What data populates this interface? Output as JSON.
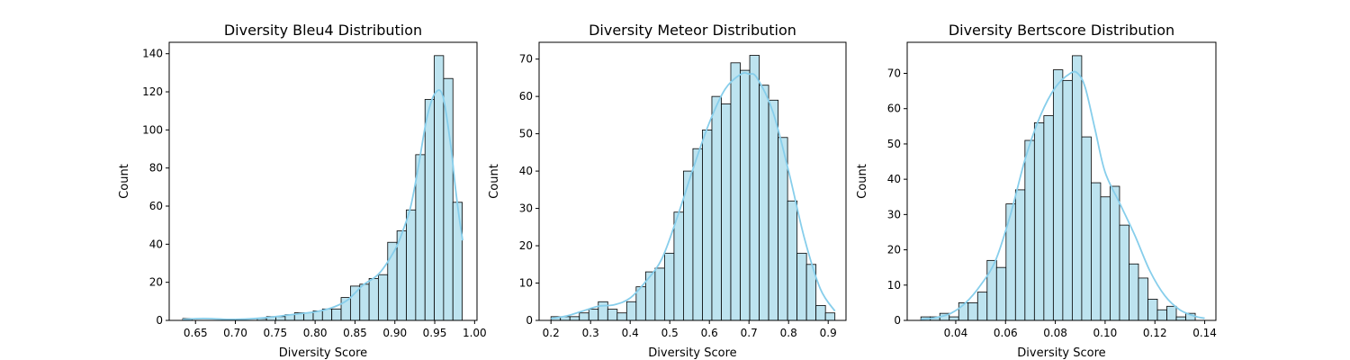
{
  "colors": {
    "bar_fill": "#bde3ef",
    "bar_edge": "#000000",
    "kde": "#87ceeb"
  },
  "chart_data": [
    {
      "type": "histogram",
      "title": "Diversity Bleu4 Distribution",
      "xlabel": "Diversity Score",
      "ylabel": "Count",
      "xlim": [
        0.617,
        1.003
      ],
      "ylim": [
        0,
        146
      ],
      "xticks": [
        0.65,
        0.7,
        0.75,
        0.8,
        0.85,
        0.9,
        0.95,
        1.0
      ],
      "xtick_labels": [
        "0.65",
        "0.70",
        "0.75",
        "0.80",
        "0.85",
        "0.90",
        "0.95",
        "1.00"
      ],
      "yticks": [
        0,
        20,
        40,
        60,
        80,
        100,
        120,
        140
      ],
      "bin_edges": [
        0.634,
        0.6457,
        0.6574,
        0.669,
        0.6807,
        0.6924,
        0.7041,
        0.7158,
        0.7275,
        0.7391,
        0.7508,
        0.7625,
        0.7742,
        0.7859,
        0.7976,
        0.8092,
        0.8209,
        0.8326,
        0.8443,
        0.856,
        0.8677,
        0.8793,
        0.891,
        0.9027,
        0.9144,
        0.9261,
        0.9378,
        0.9494,
        0.9611,
        0.9728,
        0.9845
      ],
      "counts": [
        1,
        0,
        0,
        0,
        0,
        0,
        0,
        0,
        1,
        2,
        2,
        3,
        4,
        4,
        5,
        6,
        6,
        12,
        18,
        19,
        22,
        24,
        41,
        47,
        58,
        87,
        116,
        139,
        127,
        62
      ],
      "kde": {
        "x": [
          0.634,
          0.66,
          0.7,
          0.74,
          0.78,
          0.8,
          0.82,
          0.84,
          0.86,
          0.88,
          0.9,
          0.91,
          0.92,
          0.93,
          0.94,
          0.95,
          0.96,
          0.97,
          0.975,
          0.98,
          0.985
        ],
        "y": [
          0.5,
          1.0,
          0.5,
          1.5,
          3.5,
          4.5,
          6.5,
          10.5,
          18.5,
          24.5,
          37,
          47,
          60,
          82,
          106,
          119,
          118,
          92,
          73,
          56,
          42
        ]
      }
    },
    {
      "type": "histogram",
      "title": "Diversity Meteor Distribution",
      "xlabel": "Diversity Score",
      "ylabel": "Count",
      "xlim": [
        0.17,
        0.945
      ],
      "ylim": [
        0,
        74.5
      ],
      "xticks": [
        0.2,
        0.3,
        0.4,
        0.5,
        0.6,
        0.7,
        0.8,
        0.9
      ],
      "xtick_labels": [
        "0.2",
        "0.3",
        "0.4",
        "0.5",
        "0.6",
        "0.7",
        "0.8",
        "0.9"
      ],
      "yticks": [
        0,
        10,
        20,
        30,
        40,
        50,
        60,
        70
      ],
      "bin_edges": [
        0.2,
        0.2239,
        0.2478,
        0.2717,
        0.2956,
        0.3195,
        0.3434,
        0.3673,
        0.3912,
        0.4151,
        0.439,
        0.4629,
        0.4868,
        0.5107,
        0.5346,
        0.5585,
        0.5824,
        0.6063,
        0.6302,
        0.6541,
        0.678,
        0.7019,
        0.7258,
        0.7497,
        0.7736,
        0.7975,
        0.8214,
        0.8453,
        0.8692,
        0.8931,
        0.917
      ],
      "counts": [
        1,
        1,
        1,
        2,
        3,
        5,
        3,
        2,
        5,
        9,
        13,
        14,
        18,
        29,
        40,
        46,
        51,
        60,
        58,
        69,
        67,
        71,
        63,
        59,
        49,
        32,
        18,
        15,
        4,
        2
      ],
      "kde": {
        "x": [
          0.2,
          0.24,
          0.28,
          0.32,
          0.36,
          0.4,
          0.44,
          0.48,
          0.52,
          0.56,
          0.6,
          0.64,
          0.68,
          0.7,
          0.72,
          0.76,
          0.8,
          0.84,
          0.88,
          0.917
        ],
        "y": [
          0.5,
          1.2,
          2.5,
          3.8,
          4.2,
          6.0,
          10.5,
          16.5,
          28.0,
          41.0,
          53.0,
          62.0,
          66.0,
          66.0,
          65.0,
          56.0,
          40.0,
          22.0,
          8.5,
          2.5
        ]
      }
    },
    {
      "type": "histogram",
      "title": "Diversity Bertscore Distribution",
      "xlabel": "Diversity Score",
      "ylabel": "Count",
      "xlim": [
        0.0205,
        0.1445
      ],
      "ylim": [
        0,
        78.8
      ],
      "xticks": [
        0.04,
        0.06,
        0.08,
        0.1,
        0.12,
        0.14
      ],
      "xtick_labels": [
        "0.04",
        "0.06",
        "0.08",
        "0.10",
        "0.12",
        "0.14"
      ],
      "yticks": [
        0,
        10,
        20,
        30,
        40,
        50,
        60,
        70
      ],
      "bin_edges": [
        0.026,
        0.0298,
        0.0336,
        0.0374,
        0.0412,
        0.045,
        0.0488,
        0.0526,
        0.0564,
        0.0602,
        0.064,
        0.0678,
        0.0716,
        0.0754,
        0.0792,
        0.083,
        0.0868,
        0.0906,
        0.0944,
        0.0982,
        0.102,
        0.1058,
        0.1096,
        0.1134,
        0.1172,
        0.121,
        0.1248,
        0.1286,
        0.1324,
        0.1362,
        0.14
      ],
      "counts": [
        1,
        1,
        2,
        1,
        5,
        5,
        8,
        17,
        15,
        33,
        37,
        51,
        56,
        58,
        71,
        68,
        75,
        52,
        39,
        35,
        38,
        27,
        16,
        12,
        6,
        3,
        4,
        1,
        2,
        0
      ],
      "kde": {
        "x": [
          0.026,
          0.032,
          0.038,
          0.044,
          0.05,
          0.056,
          0.062,
          0.068,
          0.074,
          0.08,
          0.086,
          0.089,
          0.092,
          0.096,
          0.1,
          0.106,
          0.112,
          0.118,
          0.124,
          0.13,
          0.136,
          0.14
        ],
        "y": [
          0.3,
          0.8,
          2.0,
          5.0,
          10.0,
          17.0,
          30.0,
          46.0,
          58.0,
          66.0,
          70.0,
          70.0,
          66.0,
          54.0,
          42.0,
          33.0,
          24.0,
          14.0,
          7.0,
          3.0,
          1.2,
          0.6
        ]
      }
    }
  ]
}
